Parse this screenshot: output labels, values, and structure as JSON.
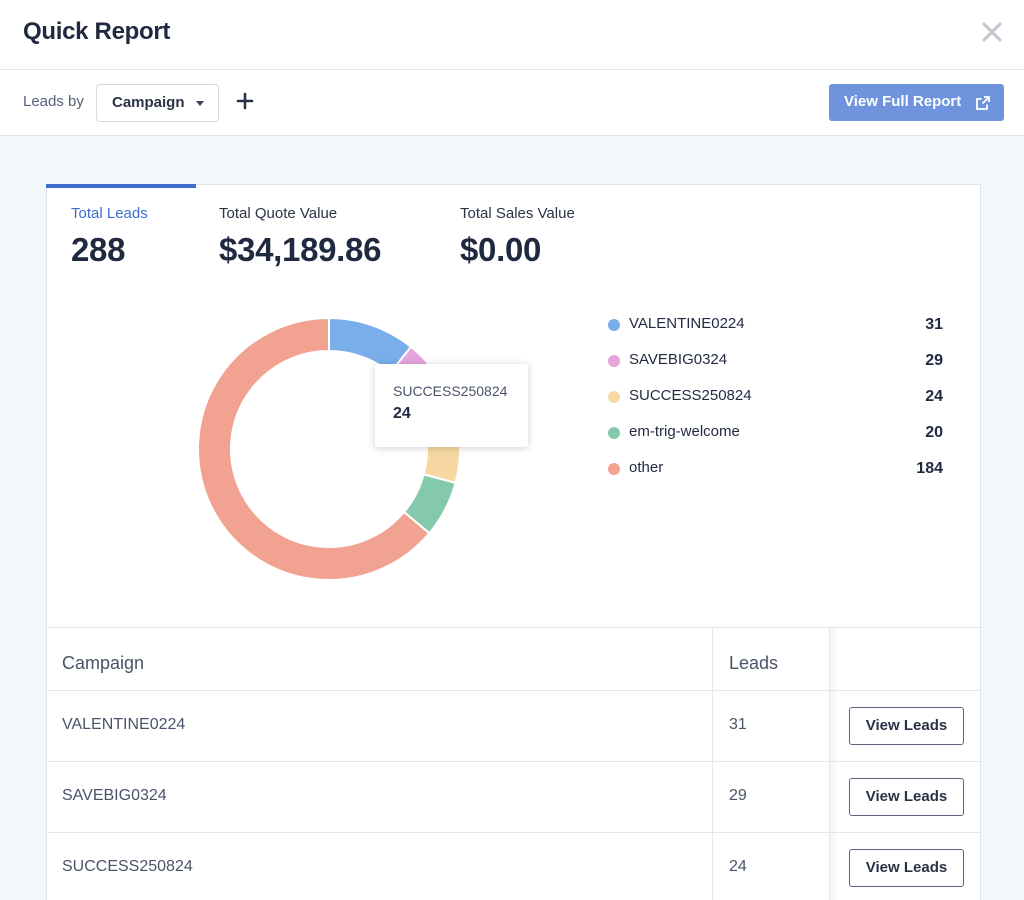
{
  "header": {
    "title": "Quick Report",
    "close_icon": "close-icon"
  },
  "toolbar": {
    "leads_by_label": "Leads by",
    "group_select_value": "Campaign",
    "add_icon": "plus-icon",
    "full_report_label": "View Full Report",
    "full_report_icon": "external-link-icon",
    "accent_color": "#6f93dc"
  },
  "stats": [
    {
      "label": "Total Leads",
      "value": "288",
      "active": true
    },
    {
      "label": "Total Quote Value",
      "value": "$34,189.86",
      "active": false
    },
    {
      "label": "Total Sales Value",
      "value": "$0.00",
      "active": false
    }
  ],
  "chart_data": {
    "type": "pie",
    "variant": "donut",
    "categories": [
      "VALENTINE0224",
      "SAVEBIG0324",
      "SUCCESS250824",
      "em-trig-welcome",
      "other"
    ],
    "values": [
      31,
      29,
      24,
      20,
      184
    ],
    "colors": [
      "#7aaeea",
      "#e6a3dc",
      "#f7d8a3",
      "#85c9ad",
      "#f2a290"
    ],
    "legend_position": "right"
  },
  "tooltip": {
    "name": "SUCCESS250824",
    "value": "24"
  },
  "table": {
    "headers": [
      "Campaign",
      "Leads"
    ],
    "action_label": "View Leads",
    "rows": [
      {
        "campaign": "VALENTINE0224",
        "leads": "31"
      },
      {
        "campaign": "SAVEBIG0324",
        "leads": "29"
      },
      {
        "campaign": "SUCCESS250824",
        "leads": "24"
      }
    ]
  }
}
